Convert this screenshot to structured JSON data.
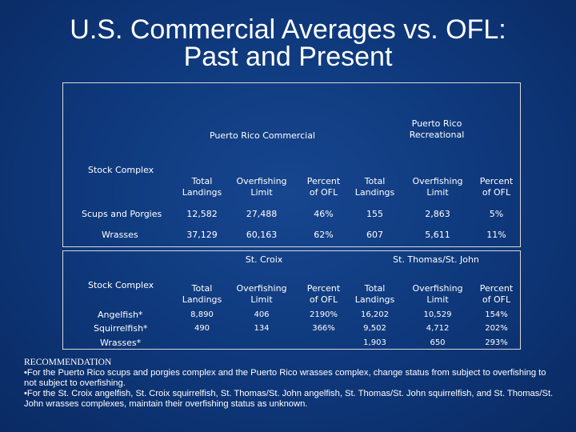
{
  "slide": {
    "title_line1": "U.S. Commercial Averages vs. OFL:",
    "title_line2": "Past and Present"
  },
  "table1": {
    "group_commercial": "Puerto Rico Commercial",
    "group_recreational": "Puerto Rico Recreational",
    "stock_label": "Stock Complex",
    "col_total": "Total Landings",
    "col_ofl": "Overfishing Limit",
    "col_pct": "Percent of OFL",
    "rows": [
      {
        "name": "Scups and Porgies",
        "c_total": "12,582",
        "c_ofl": "27,488",
        "c_pct": "46%",
        "r_total": "155",
        "r_ofl": "2,863",
        "r_pct": "5%"
      },
      {
        "name": "Wrasses",
        "c_total": "37,129",
        "c_ofl": "60,163",
        "c_pct": "62%",
        "r_total": "607",
        "r_ofl": "5,611",
        "r_pct": "11%"
      }
    ]
  },
  "table2": {
    "group_stcroix": "St. Croix",
    "group_stthomas": "St. Thomas/St. John",
    "stock_label": "Stock Complex",
    "col_total": "Total Landings",
    "col_ofl": "Overfishing Limit",
    "col_pct": "Percent of OFL",
    "rows": [
      {
        "name": "Angelfish*",
        "a_total": "8,890",
        "a_ofl": "406",
        "a_pct": "2190%",
        "b_total": "16,202",
        "b_ofl": "10,529",
        "b_pct": "154%"
      },
      {
        "name": "Squirrelfish*",
        "a_total": "490",
        "a_ofl": "134",
        "a_pct": "366%",
        "b_total": "9,502",
        "b_ofl": "4,712",
        "b_pct": "202%"
      },
      {
        "name": "Wrasses*",
        "a_total": "",
        "a_ofl": "",
        "a_pct": "",
        "b_total": "1,903",
        "b_ofl": "650",
        "b_pct": "293%"
      }
    ]
  },
  "recommendation": {
    "heading": "RECOMMENDATION",
    "bullet1": "•For the Puerto Rico scups and porgies complex and the Puerto Rico wrasses complex, change status from subject to overfishing to not subject to overfishing.",
    "bullet2": "•For the St. Croix angelfish, St. Croix squirrelfish, St. Thomas/St. John angelfish, St. Thomas/St. John squirrelfish, and St. Thomas/St. John wrasses complexes, maintain their overfishing status as unknown."
  }
}
